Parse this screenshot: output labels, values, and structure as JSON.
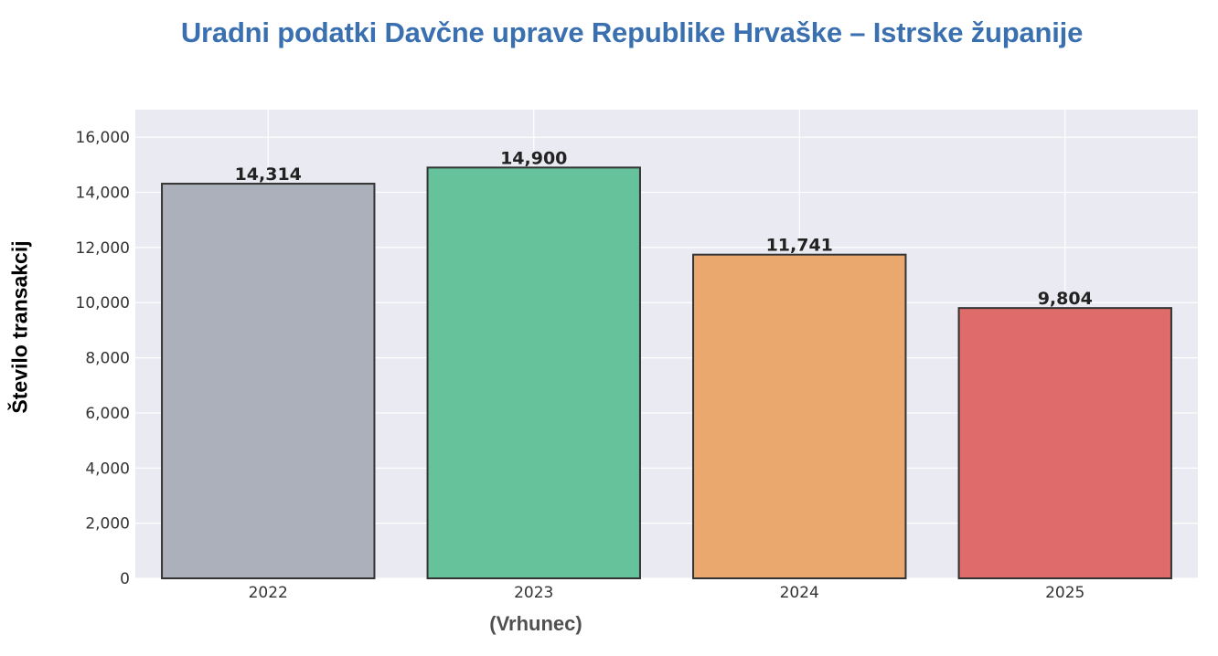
{
  "chart_data": {
    "type": "bar",
    "title": "Uradni podatki Davčne uprave Republike Hrvaške – Istrske županije",
    "ylabel": "Število transakcij",
    "xlabel": "(Vrhunec)",
    "categories": [
      "2022",
      "2023",
      "2024",
      "2025"
    ],
    "values": [
      14314,
      14900,
      11741,
      9804
    ],
    "data_labels": [
      "14,314",
      "14,900",
      "11,741",
      "9,804"
    ],
    "bar_colors": [
      "#abb0ba",
      "#66c29a",
      "#eba86e",
      "#df6c6a"
    ],
    "ylim": [
      0,
      17000
    ],
    "yticks": [
      0,
      2000,
      4000,
      6000,
      8000,
      10000,
      12000,
      14000,
      16000
    ],
    "ytick_labels": [
      "0",
      "2,000",
      "4,000",
      "6,000",
      "8,000",
      "10,000",
      "12,000",
      "14,000",
      "16,000"
    ],
    "grid": true,
    "legend": "none"
  }
}
